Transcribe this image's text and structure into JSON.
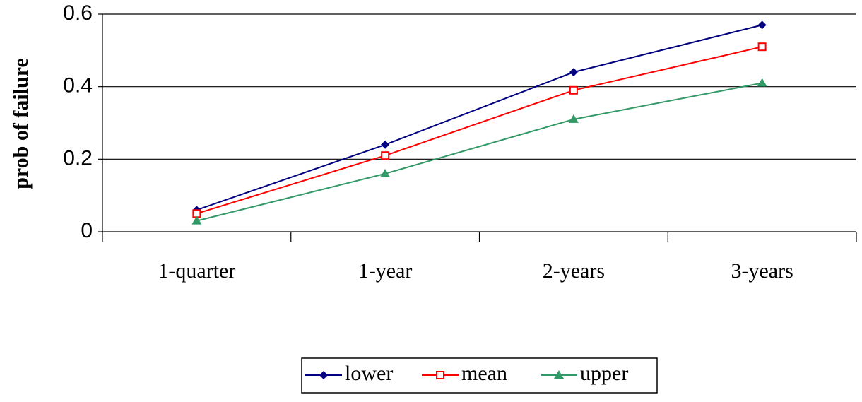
{
  "chart_data": {
    "type": "line",
    "y_label": "prob of failure",
    "categories": [
      "1-quarter",
      "1-year",
      "2-years",
      "3-years"
    ],
    "series": [
      {
        "name": "lower",
        "color": "#000080",
        "marker": "diamond",
        "values": [
          0.06,
          0.24,
          0.44,
          0.57
        ]
      },
      {
        "name": "mean",
        "color": "#ff0000",
        "marker": "square",
        "values": [
          0.05,
          0.21,
          0.39,
          0.51
        ]
      },
      {
        "name": "upper",
        "color": "#339966",
        "marker": "triangle",
        "values": [
          0.03,
          0.16,
          0.31,
          0.41
        ]
      }
    ],
    "ylim": [
      0,
      0.6
    ],
    "yticks": [
      0,
      0.2,
      0.4,
      0.6
    ],
    "grid": true,
    "legend": "bottom"
  }
}
